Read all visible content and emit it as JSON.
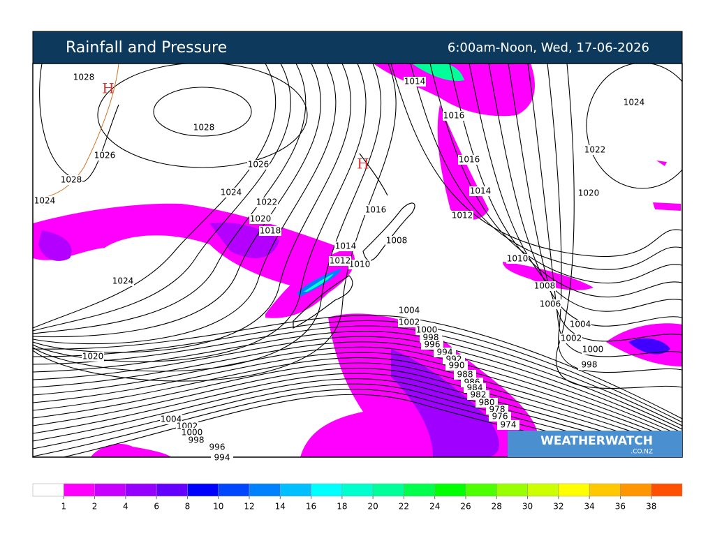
{
  "header": {
    "title": "Rainfall and Pressure",
    "time": "6:00am-Noon, Wed, 17-06-2026"
  },
  "highs": [
    "H",
    "H"
  ],
  "isobar_labels": [
    1028,
    1028,
    1026,
    1028,
    1024,
    1026,
    1024,
    1022,
    1020,
    1018,
    1024,
    1020,
    1014,
    1016,
    1016,
    1014,
    1016,
    1012,
    1008,
    1014,
    1010,
    1012,
    1010,
    1008,
    1006,
    1004,
    1002,
    1000,
    998,
    996,
    994,
    992,
    990,
    988,
    986,
    984,
    982,
    980,
    978,
    976,
    974,
    1024,
    1022,
    1020,
    1004,
    1002,
    1000,
    998,
    1004,
    1002,
    1000,
    998,
    996,
    994
  ],
  "logo": {
    "name": "WEATHERWATCH",
    "domain": ".CO.NZ"
  },
  "legend": {
    "colors": [
      "#ffffff",
      "#ff00ff",
      "#c800ff",
      "#9600ff",
      "#6400ff",
      "#0000ff",
      "#0046ff",
      "#0082ff",
      "#00bfff",
      "#00ffff",
      "#00ffcc",
      "#00ff99",
      "#00ff4d",
      "#00ff00",
      "#4dff00",
      "#99ff00",
      "#ccff00",
      "#ffff00",
      "#ffc800",
      "#ff9600",
      "#ff5000"
    ],
    "ticks": [
      1,
      2,
      4,
      6,
      8,
      10,
      12,
      14,
      16,
      18,
      20,
      22,
      24,
      26,
      28,
      30,
      32,
      34,
      36,
      38
    ]
  }
}
